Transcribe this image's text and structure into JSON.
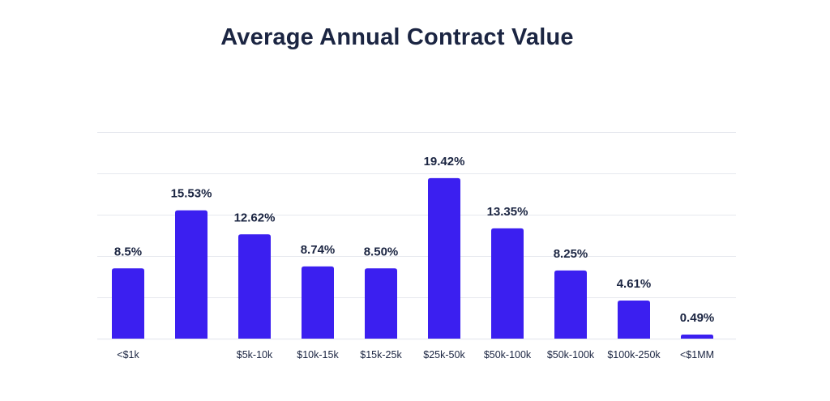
{
  "chart_data": {
    "type": "bar",
    "title": "Average Annual Contract Value",
    "xlabel": "",
    "ylabel": "",
    "categories": [
      "<$1k",
      "",
      "$5k-10k",
      "$10k-15k",
      "$15k-25k",
      "$25k-50k",
      "$50k-100k",
      "$50k-100k",
      "$100k-250k",
      "<$1MM"
    ],
    "values": [
      8.5,
      15.53,
      12.62,
      8.74,
      8.5,
      19.42,
      13.35,
      8.25,
      4.61,
      0.49
    ],
    "data_labels": [
      "8.5%",
      "15.53%",
      "12.62%",
      "8.74%",
      "8.50%",
      "19.42%",
      "13.35%",
      "8.25%",
      "4.61%",
      "0.49%"
    ],
    "ylim": [
      0,
      25
    ],
    "grid": true,
    "bar_color": "#3b1ff0",
    "grid_color": "#e6e8ee",
    "text_color": "#1b2542"
  }
}
